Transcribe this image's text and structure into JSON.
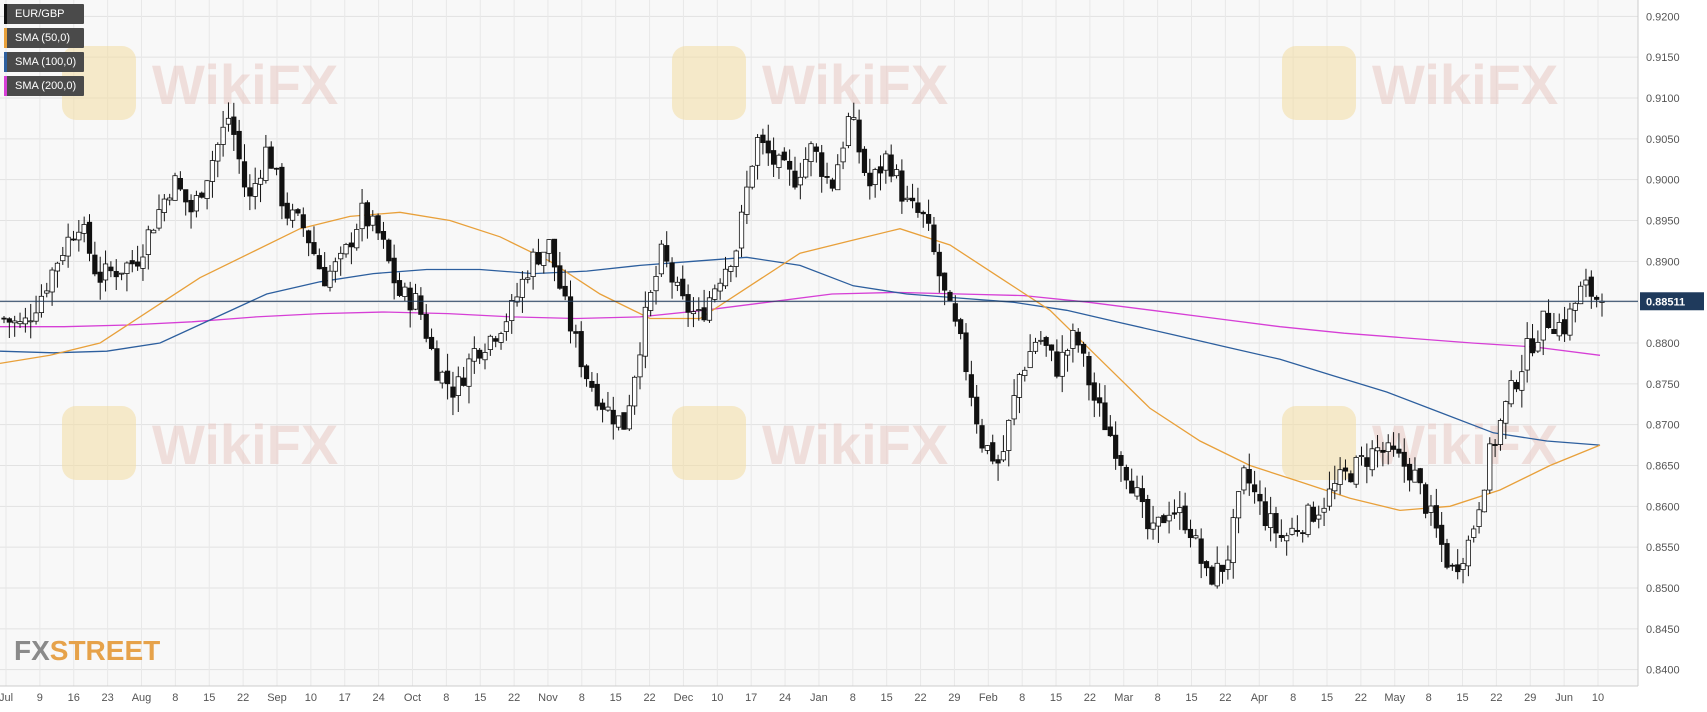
{
  "legend": [
    {
      "label": "EUR/GBP",
      "color": "#111111"
    },
    {
      "label": "SMA (50,0)",
      "color": "#e8a03a"
    },
    {
      "label": "SMA (100,0)",
      "color": "#2d5f9e"
    },
    {
      "label": "SMA (200,0)",
      "color": "#d63fd6"
    }
  ],
  "brand": {
    "fx": "FX",
    "street": "STREET"
  },
  "watermark": "WikiFX",
  "chart_data": {
    "type": "candlestick",
    "title": "",
    "grid": true,
    "ylim": [
      0.838,
      0.922
    ],
    "y_ticks": [
      "0.9200",
      "0.9150",
      "0.9100",
      "0.9050",
      "0.9000",
      "0.8950",
      "0.8900",
      "0.8850",
      "0.8800",
      "0.8750",
      "0.8700",
      "0.8650",
      "0.8600",
      "0.8550",
      "0.8500",
      "0.8450",
      "0.8400"
    ],
    "x_ticks": [
      "Jul",
      "9",
      "16",
      "23",
      "Aug",
      "8",
      "15",
      "22",
      "Sep",
      "10",
      "17",
      "24",
      "Oct",
      "8",
      "15",
      "22",
      "Nov",
      "8",
      "15",
      "22",
      "Dec",
      "10",
      "17",
      "24",
      "Jan",
      "8",
      "15",
      "22",
      "29",
      "Feb",
      "8",
      "15",
      "22",
      "Mar",
      "8",
      "15",
      "22",
      "Apr",
      "8",
      "15",
      "22",
      "May",
      "8",
      "15",
      "22",
      "29",
      "Jun",
      "10"
    ],
    "last_price": 0.88511,
    "last_price_label": "0.88511",
    "close_path": [
      0.883,
      0.882,
      0.886,
      0.891,
      0.895,
      0.888,
      0.889,
      0.89,
      0.895,
      0.9,
      0.896,
      0.902,
      0.908,
      0.897,
      0.904,
      0.896,
      0.894,
      0.888,
      0.89,
      0.896,
      0.893,
      0.886,
      0.885,
      0.877,
      0.874,
      0.879,
      0.881,
      0.884,
      0.89,
      0.892,
      0.883,
      0.876,
      0.872,
      0.87,
      0.882,
      0.891,
      0.885,
      0.883,
      0.888,
      0.892,
      0.905,
      0.902,
      0.9,
      0.904,
      0.899,
      0.908,
      0.899,
      0.903,
      0.897,
      0.895,
      0.886,
      0.879,
      0.868,
      0.865,
      0.876,
      0.881,
      0.877,
      0.881,
      0.873,
      0.868,
      0.863,
      0.856,
      0.86,
      0.858,
      0.851,
      0.853,
      0.864,
      0.859,
      0.856,
      0.858,
      0.86,
      0.863,
      0.865,
      0.867,
      0.866,
      0.864,
      0.858,
      0.852,
      0.856,
      0.866,
      0.873,
      0.879,
      0.883,
      0.882,
      0.887,
      0.885
    ],
    "sma50_path": [
      0.8775,
      0.8785,
      0.88,
      0.884,
      0.888,
      0.891,
      0.894,
      0.8955,
      0.896,
      0.895,
      0.893,
      0.89,
      0.886,
      0.883,
      0.883,
      0.887,
      0.891,
      0.8925,
      0.894,
      0.892,
      0.888,
      0.884,
      0.878,
      0.872,
      0.868,
      0.865,
      0.863,
      0.861,
      0.8595,
      0.86,
      0.862,
      0.865,
      0.8675
    ],
    "sma100_path": [
      0.879,
      0.8788,
      0.879,
      0.88,
      0.883,
      0.886,
      0.8875,
      0.8885,
      0.889,
      0.889,
      0.8885,
      0.8888,
      0.8895,
      0.89,
      0.8905,
      0.8895,
      0.887,
      0.886,
      0.8855,
      0.885,
      0.884,
      0.8825,
      0.881,
      0.8795,
      0.878,
      0.876,
      0.874,
      0.8715,
      0.869,
      0.868,
      0.8675
    ],
    "sma200_path": [
      0.882,
      0.882,
      0.8822,
      0.8826,
      0.8832,
      0.8836,
      0.8838,
      0.8836,
      0.8832,
      0.883,
      0.8832,
      0.884,
      0.885,
      0.886,
      0.8862,
      0.886,
      0.8858,
      0.885,
      0.884,
      0.883,
      0.882,
      0.8812,
      0.8806,
      0.88,
      0.8795,
      0.8785
    ]
  }
}
